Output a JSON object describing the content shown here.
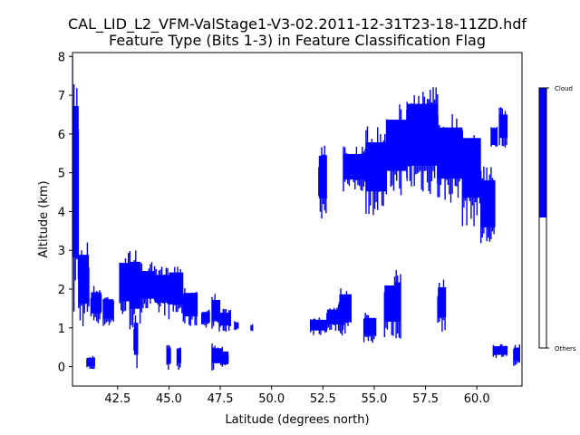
{
  "chart_data": {
    "type": "scatter",
    "title_line1": "CAL_LID_L2_VFM-ValStage1-V3-02.2011-12-31T23-18-11ZD.hdf",
    "title_line2": "Feature Type (Bits 1-3) in Feature Classification Flag",
    "xlabel": "Latitude (degrees north)",
    "ylabel": "Altitude (km)",
    "xlim": [
      40.3,
      62.2
    ],
    "ylim": [
      -0.5,
      8.1
    ],
    "xticks": [
      "42.5",
      "45.0",
      "47.5",
      "50.0",
      "52.5",
      "55.0",
      "57.5",
      "60.0"
    ],
    "xtick_values": [
      42.5,
      45.0,
      47.5,
      50.0,
      52.5,
      55.0,
      57.5,
      60.0
    ],
    "yticks": [
      "0",
      "1",
      "2",
      "3",
      "4",
      "5",
      "6",
      "7",
      "8"
    ],
    "ytick_values": [
      0,
      1,
      2,
      3,
      4,
      5,
      6,
      7,
      8
    ],
    "colorbar": {
      "labels": [
        "Cloud",
        "Others"
      ],
      "colors": [
        "#0000ff",
        "#ffffff"
      ]
    },
    "series_color": "#0000ff",
    "series": [
      {
        "name": "Cloud",
        "features": [
          {
            "lat0": 40.3,
            "lat1": 40.6,
            "alt0": 0.9,
            "alt1": 8.0
          },
          {
            "lat0": 40.6,
            "lat1": 41.1,
            "alt0": 1.0,
            "alt1": 3.3
          },
          {
            "lat0": 41.0,
            "lat1": 41.4,
            "alt0": -0.1,
            "alt1": 0.3
          },
          {
            "lat0": 41.2,
            "lat1": 41.7,
            "alt0": 1.1,
            "alt1": 2.1
          },
          {
            "lat0": 41.8,
            "lat1": 42.3,
            "alt0": 1.0,
            "alt1": 1.9
          },
          {
            "lat0": 42.6,
            "lat1": 43.1,
            "alt0": 1.2,
            "alt1": 3.0
          },
          {
            "lat0": 43.1,
            "lat1": 43.6,
            "alt0": 0.9,
            "alt1": 3.1
          },
          {
            "lat0": 43.6,
            "lat1": 44.3,
            "alt0": 1.4,
            "alt1": 2.7
          },
          {
            "lat0": 44.3,
            "lat1": 45.0,
            "alt0": 1.3,
            "alt1": 2.6
          },
          {
            "lat0": 45.0,
            "lat1": 45.7,
            "alt0": 1.2,
            "alt1": 2.7
          },
          {
            "lat0": 45.7,
            "lat1": 46.4,
            "alt0": 1.0,
            "alt1": 2.1
          },
          {
            "lat0": 46.6,
            "lat1": 47.0,
            "alt0": 1.0,
            "alt1": 1.5
          },
          {
            "lat0": 47.1,
            "lat1": 47.5,
            "alt0": 0.9,
            "alt1": 1.9
          },
          {
            "lat0": 47.5,
            "lat1": 48.0,
            "alt0": 0.9,
            "alt1": 1.5
          },
          {
            "lat0": 48.2,
            "lat1": 48.4,
            "alt0": 0.9,
            "alt1": 1.2
          },
          {
            "lat0": 49.0,
            "lat1": 49.1,
            "alt0": 0.9,
            "alt1": 1.1
          },
          {
            "lat0": 43.3,
            "lat1": 43.5,
            "alt0": -0.1,
            "alt1": 1.4
          },
          {
            "lat0": 44.9,
            "lat1": 45.1,
            "alt0": -0.1,
            "alt1": 0.6
          },
          {
            "lat0": 45.4,
            "lat1": 45.6,
            "alt0": -0.1,
            "alt1": 0.6
          },
          {
            "lat0": 47.1,
            "lat1": 47.6,
            "alt0": -0.1,
            "alt1": 0.6
          },
          {
            "lat0": 47.6,
            "lat1": 47.9,
            "alt0": -0.1,
            "alt1": 0.5
          },
          {
            "lat0": 51.9,
            "lat1": 52.7,
            "alt0": 0.8,
            "alt1": 1.3
          },
          {
            "lat0": 52.7,
            "lat1": 53.5,
            "alt0": 0.9,
            "alt1": 1.6
          },
          {
            "lat0": 53.3,
            "lat1": 53.9,
            "alt0": 0.8,
            "alt1": 2.1
          },
          {
            "lat0": 54.5,
            "lat1": 55.1,
            "alt0": 0.6,
            "alt1": 1.4
          },
          {
            "lat0": 55.5,
            "lat1": 56.2,
            "alt0": 0.7,
            "alt1": 2.4
          },
          {
            "lat0": 52.3,
            "lat1": 52.7,
            "alt0": 3.8,
            "alt1": 5.8
          },
          {
            "lat0": 53.5,
            "lat1": 54.6,
            "alt0": 4.5,
            "alt1": 5.7
          },
          {
            "lat0": 54.6,
            "lat1": 55.6,
            "alt0": 3.9,
            "alt1": 6.2
          },
          {
            "lat0": 55.6,
            "lat1": 56.6,
            "alt0": 4.4,
            "alt1": 6.8
          },
          {
            "lat0": 56.6,
            "lat1": 58.1,
            "alt0": 4.4,
            "alt1": 7.3
          },
          {
            "lat0": 58.1,
            "lat1": 59.3,
            "alt0": 4.2,
            "alt1": 6.6
          },
          {
            "lat0": 59.3,
            "lat1": 60.2,
            "alt0": 3.6,
            "alt1": 6.4
          },
          {
            "lat0": 60.2,
            "lat1": 60.9,
            "alt0": 3.0,
            "alt1": 5.2
          },
          {
            "lat0": 60.7,
            "lat1": 61.0,
            "alt0": 5.5,
            "alt1": 6.3
          },
          {
            "lat0": 61.1,
            "lat1": 61.5,
            "alt0": 5.6,
            "alt1": 6.7
          },
          {
            "lat0": 56.0,
            "lat1": 56.3,
            "alt0": 0.7,
            "alt1": 2.5
          },
          {
            "lat0": 58.1,
            "lat1": 58.5,
            "alt0": 0.9,
            "alt1": 2.3
          },
          {
            "lat0": 60.8,
            "lat1": 61.5,
            "alt0": 0.2,
            "alt1": 0.6
          },
          {
            "lat0": 61.8,
            "lat1": 62.1,
            "alt0": 0.0,
            "alt1": 0.6
          }
        ]
      }
    ]
  }
}
